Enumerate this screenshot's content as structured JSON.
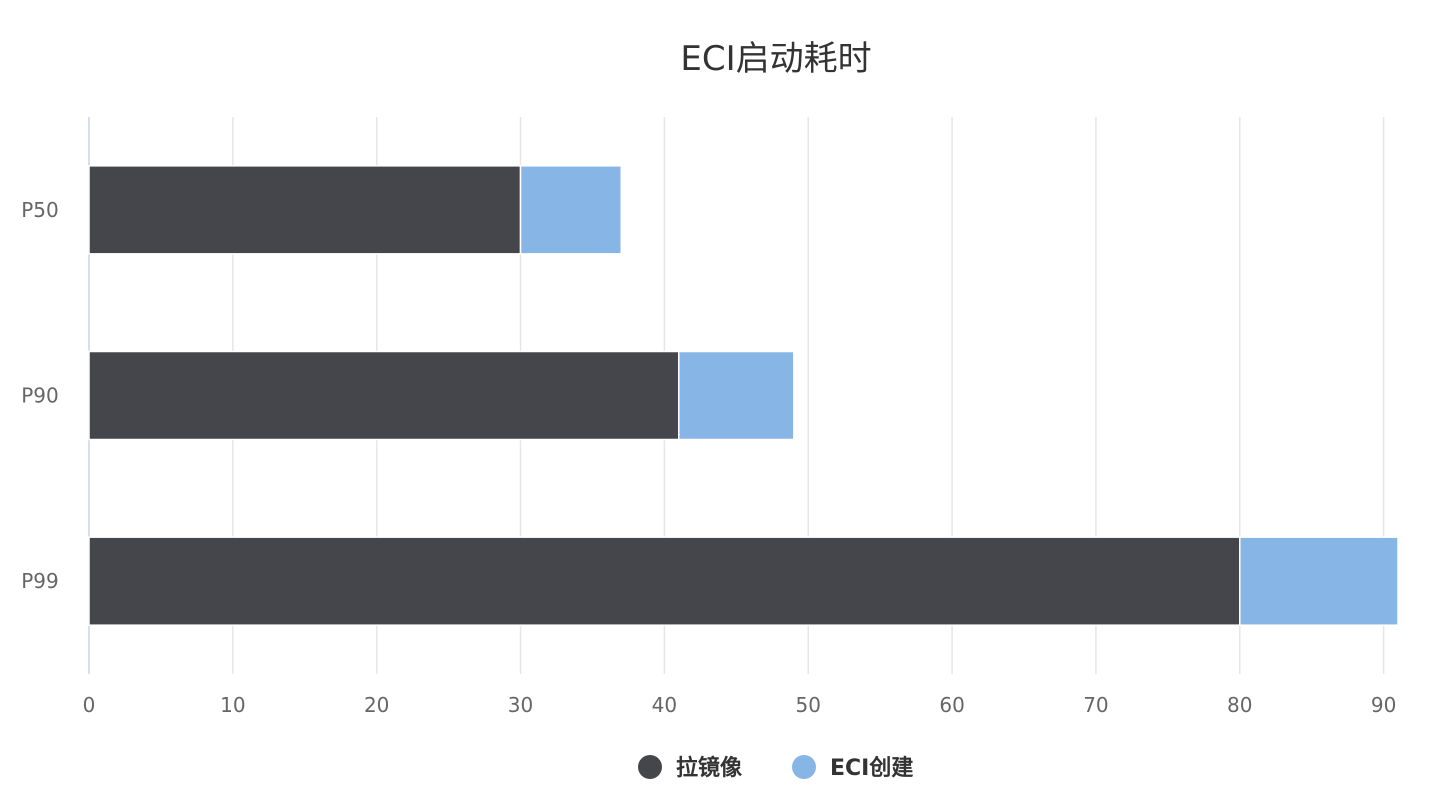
{
  "chart_data": {
    "type": "bar",
    "orientation": "horizontal",
    "stacked": true,
    "title": "ECI启动耗时",
    "xlabel": "",
    "ylabel": "",
    "categories": [
      "P50",
      "P90",
      "P99"
    ],
    "series": [
      {
        "name": "拉镜像",
        "values": [
          30,
          41,
          80
        ],
        "color": "#45464c"
      },
      {
        "name": "ECI创建",
        "values": [
          7,
          8,
          11
        ],
        "color": "#87b5e6"
      }
    ],
    "xlim": [
      0,
      91
    ],
    "xticks": [
      "0",
      "10",
      "20",
      "30",
      "40",
      "50",
      "60",
      "70",
      "80",
      "90"
    ],
    "grid": true,
    "legend": "bottom-center"
  }
}
